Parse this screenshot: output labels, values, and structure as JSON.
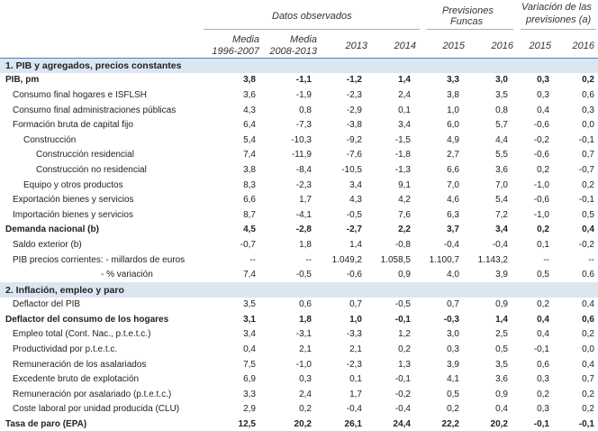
{
  "header": {
    "group_observed": "Datos observados",
    "group_forecast_line1": "Previsiones",
    "group_forecast_line2": "Funcas",
    "group_variation_line1": "Variación de las",
    "group_variation_line2": "previsiones (a)",
    "col_media1_l1": "Media",
    "col_media1_l2": "1996-2007",
    "col_media2_l1": "Media",
    "col_media2_l2": "2008-2013",
    "col_2013": "2013",
    "col_2014": "2014",
    "col_2015": "2015",
    "col_2016": "2016",
    "col_v2015": "2015",
    "col_v2016": "2016"
  },
  "rows": [
    {
      "label": "1. PIB y agregados, precios constantes",
      "type": "section",
      "v": [
        "",
        "",
        "",
        "",
        "",
        "",
        "",
        ""
      ]
    },
    {
      "label": "PIB, pm",
      "type": "bold",
      "v": [
        "3,8",
        "-1,1",
        "-1,2",
        "1,4",
        "3,3",
        "3,0",
        "0,3",
        "0,2"
      ]
    },
    {
      "label": "Consumo final hogares e ISFLSH",
      "type": "indent0b",
      "v": [
        "3,6",
        "-1,9",
        "-2,3",
        "2,4",
        "3,8",
        "3,5",
        "0,3",
        "0,6"
      ]
    },
    {
      "label": "Consumo final administraciones públicas",
      "type": "indent0b",
      "v": [
        "4,3",
        "0,8",
        "-2,9",
        "0,1",
        "1,0",
        "0,8",
        "0,4",
        "0,3"
      ]
    },
    {
      "label": "Formación bruta de capital fijo",
      "type": "indent0b",
      "v": [
        "6,4",
        "-7,3",
        "-3,8",
        "3,4",
        "6,0",
        "5,7",
        "-0,6",
        "0,0"
      ]
    },
    {
      "label": "Construcción",
      "type": "indent1",
      "v": [
        "5,4",
        "-10,3",
        "-9,2",
        "-1,5",
        "4,9",
        "4,4",
        "-0,2",
        "-0,1"
      ]
    },
    {
      "label": "Construcción residencial",
      "type": "indent2",
      "v": [
        "7,4",
        "-11,9",
        "-7,6",
        "-1,8",
        "2,7",
        "5,5",
        "-0,6",
        "0,7"
      ]
    },
    {
      "label": "Construcción no residencial",
      "type": "indent2",
      "v": [
        "3,8",
        "-8,4",
        "-10,5",
        "-1,3",
        "6,6",
        "3,6",
        "0,2",
        "-0,7"
      ]
    },
    {
      "label": "Equipo y otros productos",
      "type": "indent1",
      "v": [
        "8,3",
        "-2,3",
        "3,4",
        "9,1",
        "7,0",
        "7,0",
        "-1,0",
        "0,2"
      ]
    },
    {
      "label": "Exportación bienes y servicios",
      "type": "indent0b",
      "v": [
        "6,6",
        "1,7",
        "4,3",
        "4,2",
        "4,6",
        "5,4",
        "-0,6",
        "-0,1"
      ]
    },
    {
      "label": "Importación bienes y servicios",
      "type": "indent0b",
      "v": [
        "8,7",
        "-4,1",
        "-0,5",
        "7,6",
        "6,3",
        "7,2",
        "-1,0",
        "0,5"
      ]
    },
    {
      "label": "Demanda nacional (b)",
      "type": "bold",
      "v": [
        "4,5",
        "-2,8",
        "-2,7",
        "2,2",
        "3,7",
        "3,4",
        "0,2",
        "0,4"
      ]
    },
    {
      "label": "Saldo exterior (b)",
      "type": "indent0b",
      "v": [
        "-0,7",
        "1,8",
        "1,4",
        "-0,8",
        "-0,4",
        "-0,4",
        "0,1",
        "-0,2"
      ]
    },
    {
      "label": "PIB precios corrientes: - millardos de euros",
      "type": "indent0b",
      "v": [
        "--",
        "--",
        "1.049,2",
        "1.058,5",
        "1.100,7",
        "1.143,2",
        "--",
        "--"
      ]
    },
    {
      "label": "- % variación",
      "type": "pct",
      "v": [
        "7,4",
        "-0,5",
        "-0,6",
        "0,9",
        "4,0",
        "3,9",
        "0,5",
        "0,6"
      ]
    },
    {
      "label": "2. Inflación, empleo y paro",
      "type": "section",
      "v": [
        "",
        "",
        "",
        "",
        "",
        "",
        "",
        ""
      ]
    },
    {
      "label": "Deflactor del PIB",
      "type": "indent0b",
      "v": [
        "3,5",
        "0,6",
        "0,7",
        "-0,5",
        "0,7",
        "0,9",
        "0,2",
        "0,4"
      ]
    },
    {
      "label": "Deflactor del consumo de los hogares",
      "type": "bold",
      "v": [
        "3,1",
        "1,8",
        "1,0",
        "-0,1",
        "-0,3",
        "1,4",
        "0,4",
        "0,6"
      ]
    },
    {
      "label": "Empleo total (Cont. Nac., p.t.e.t.c.)",
      "type": "indent0b",
      "v": [
        "3,4",
        "-3,1",
        "-3,3",
        "1,2",
        "3,0",
        "2,5",
        "0,4",
        "0,2"
      ]
    },
    {
      "label": "Productividad por p.t.e.t.c.",
      "type": "indent0b",
      "v": [
        "0,4",
        "2,1",
        "2,1",
        "0,2",
        "0,3",
        "0,5",
        "-0,1",
        "0,0"
      ]
    },
    {
      "label": "Remuneración de los asalariados",
      "type": "indent0b",
      "v": [
        "7,5",
        "-1,0",
        "-2,3",
        "1,3",
        "3,9",
        "3,5",
        "0,6",
        "0,4"
      ]
    },
    {
      "label": "Excedente bruto de explotación",
      "type": "indent0b",
      "v": [
        "6,9",
        "0,3",
        "0,1",
        "-0,1",
        "4,1",
        "3,6",
        "0,3",
        "0,7"
      ]
    },
    {
      "label": "Remuneración por asalariado (p.t.e.t.c.)",
      "type": "indent0b",
      "v": [
        "3,3",
        "2,4",
        "1,7",
        "-0,2",
        "0,5",
        "0,9",
        "0,2",
        "0,2"
      ]
    },
    {
      "label": "Coste laboral por unidad producida (CLU)",
      "type": "indent0b",
      "v": [
        "2,9",
        "0,2",
        "-0,4",
        "-0,4",
        "0,2",
        "0,4",
        "0,3",
        "0,2"
      ]
    },
    {
      "label": "Tasa de paro (EPA)",
      "type": "lastbold",
      "v": [
        "12,5",
        "20,2",
        "26,1",
        "24,4",
        "22,2",
        "20,2",
        "-0,1",
        "-0,1"
      ]
    }
  ]
}
